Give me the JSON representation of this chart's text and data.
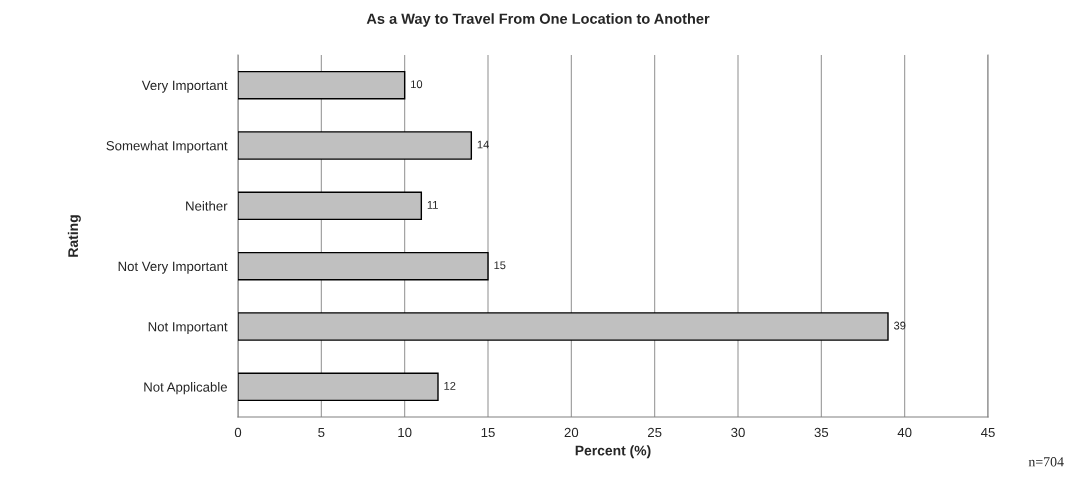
{
  "chart_data": {
    "type": "bar",
    "orientation": "horizontal",
    "title": "As a Way to Travel From One Location to Another",
    "categories": [
      "Very Important",
      "Somewhat Important",
      "Neither",
      "Not Very Important",
      "Not Important",
      "Not Applicable"
    ],
    "values": [
      10,
      14,
      11,
      15,
      39,
      12
    ],
    "color": "#c0c0c0",
    "xlabel": "Percent (%)",
    "ylabel": "Rating",
    "xlim": [
      0,
      45
    ],
    "xticks": [
      0,
      5,
      10,
      15,
      20,
      25,
      30,
      35,
      40,
      45
    ],
    "grid": "x",
    "data_labels": true,
    "annotations": [
      "n=704"
    ]
  }
}
